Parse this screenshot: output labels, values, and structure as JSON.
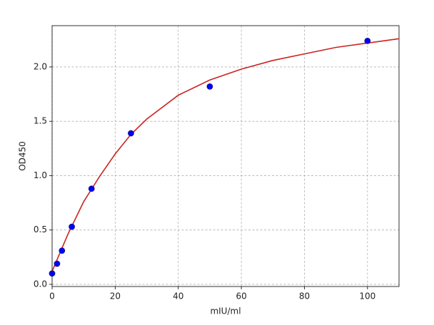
{
  "chart_data": {
    "type": "scatter",
    "x_label": "mIU/ml",
    "y_label": "OD450",
    "xlim": [
      0,
      110
    ],
    "ylim": [
      -0.02,
      2.38
    ],
    "xticks": [
      0,
      20,
      40,
      60,
      80,
      100
    ],
    "yticks": [
      {
        "value": 0,
        "label": "0.0"
      },
      {
        "value": 0.5,
        "label": "0.5"
      },
      {
        "value": 1,
        "label": "1.0"
      },
      {
        "value": 1.5,
        "label": "1.5"
      },
      {
        "value": 2,
        "label": "2.0"
      }
    ],
    "grid": true,
    "series": [
      {
        "type": "scatter",
        "color": "#0000ff",
        "x": [
          0,
          1.5625,
          3.125,
          6.25,
          12.5,
          25,
          50,
          100
        ],
        "values": [
          0.1,
          0.19,
          0.31,
          0.53,
          0.88,
          1.39,
          1.82,
          2.24
        ]
      },
      {
        "type": "line",
        "color": "#cc2222",
        "x": [
          0,
          2.5,
          5,
          10,
          15,
          20,
          25,
          30,
          40,
          50,
          60,
          70,
          80,
          90,
          100,
          110
        ],
        "values": [
          0.12,
          0.29,
          0.46,
          0.76,
          0.99,
          1.2,
          1.38,
          1.52,
          1.74,
          1.88,
          1.98,
          2.06,
          2.12,
          2.18,
          2.22,
          2.26
        ]
      }
    ]
  }
}
